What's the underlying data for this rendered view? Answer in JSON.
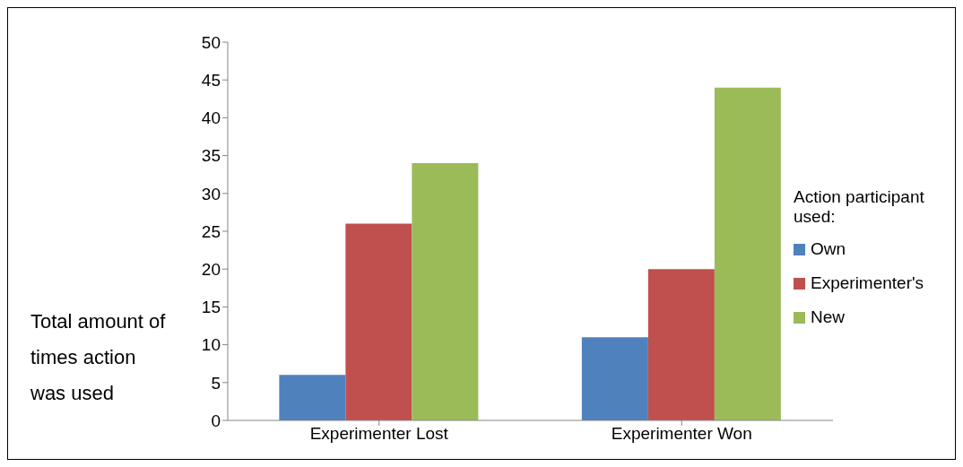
{
  "chart_data": {
    "type": "bar",
    "categories": [
      "Experimenter Lost",
      "Experimenter Won"
    ],
    "series": [
      {
        "name": "Own",
        "color": "#4f81bd",
        "values": [
          6,
          11
        ]
      },
      {
        "name": "Experimenter's",
        "color": "#c0504d",
        "values": [
          26,
          20
        ]
      },
      {
        "name": "New",
        "color": "#9bbb59",
        "values": [
          34,
          44
        ]
      }
    ],
    "ylabel": "Total amount of times action was used",
    "legend_title": "Action participant used:",
    "legend": "right",
    "ylim": [
      0,
      50
    ],
    "yticks": [
      0,
      5,
      10,
      15,
      20,
      25,
      30,
      35,
      40,
      45,
      50
    ],
    "grid": false
  }
}
